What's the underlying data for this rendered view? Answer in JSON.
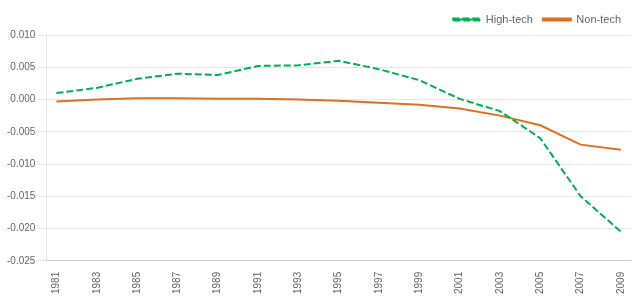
{
  "chart_data": {
    "type": "line",
    "x": [
      1981,
      1983,
      1985,
      1987,
      1989,
      1991,
      1993,
      1995,
      1997,
      1999,
      2001,
      2003,
      2005,
      2007,
      2009
    ],
    "series": [
      {
        "name": "High-tech",
        "color": "#00B050",
        "line_style": "dashed",
        "marker": "none",
        "values": [
          0.001,
          0.0018,
          0.0032,
          0.004,
          0.0038,
          0.0052,
          0.0053,
          0.006,
          0.0047,
          0.003,
          0.0001,
          -0.0018,
          -0.006,
          -0.015,
          -0.0205
        ]
      },
      {
        "name": "Non-tech",
        "color": "#E07020",
        "line_style": "solid",
        "marker": "none",
        "values": [
          -0.0003,
          0.0,
          0.0002,
          0.0002,
          0.0001,
          0.0001,
          0.0,
          -0.0002,
          -0.0005,
          -0.0008,
          -0.0014,
          -0.0025,
          -0.004,
          -0.007,
          -0.0078
        ]
      }
    ],
    "xlim": [
      1980.5,
      2009.5
    ],
    "xticks": [
      1981,
      1983,
      1985,
      1987,
      1989,
      1991,
      1993,
      1995,
      1997,
      1999,
      2001,
      2003,
      2005,
      2007,
      2009
    ],
    "ylim": [
      -0.025,
      0.01
    ],
    "yticks": [
      -0.025,
      {
        "value": -0.02,
        "label": "-0.020"
      },
      -0.015,
      {
        "value": -0.01,
        "label": "-0.010"
      },
      -0.005,
      {
        "value": 0.0,
        "label": "0.000"
      },
      0.005,
      {
        "value": 0.01,
        "label": "0.010"
      }
    ],
    "grid": "y",
    "legend": "upper right"
  }
}
